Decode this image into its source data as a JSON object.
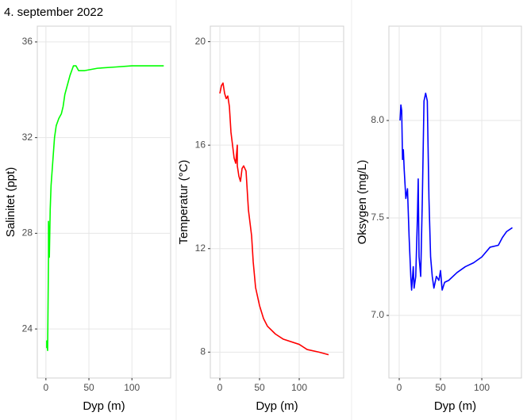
{
  "chart_data": [
    {
      "type": "line",
      "title": "4. september 2022",
      "xlabel": "Dyp (m)",
      "ylabel": "Salinitet (ppt)",
      "x": [
        1,
        1,
        2,
        3,
        3,
        4,
        5,
        6,
        8,
        10,
        12,
        15,
        18,
        20,
        22,
        25,
        28,
        32,
        35,
        38,
        45,
        60,
        80,
        100,
        120,
        137
      ],
      "values": [
        23.2,
        23.5,
        23.1,
        27,
        28.5,
        27,
        29,
        30,
        31,
        32,
        32.5,
        32.8,
        33,
        33.3,
        33.8,
        34.2,
        34.6,
        35,
        35,
        34.8,
        34.8,
        34.9,
        34.95,
        35,
        35,
        35
      ],
      "color": "#00ff00",
      "xlim": [
        -10,
        145
      ],
      "ylim": [
        21.95,
        36.66
      ],
      "xticks": [
        0,
        50,
        100
      ],
      "yticks": [
        24,
        28,
        32,
        36
      ],
      "grid": true
    },
    {
      "type": "line",
      "xlabel": "Dyp (m)",
      "ylabel": "Temperatur (°C)",
      "x": [
        0,
        2,
        4,
        6,
        8,
        10,
        12,
        14,
        16,
        18,
        20,
        22,
        22,
        24,
        26,
        28,
        30,
        33,
        36,
        40,
        42,
        45,
        50,
        55,
        60,
        70,
        80,
        100,
        110,
        125,
        137
      ],
      "values": [
        18,
        18.3,
        18.4,
        18,
        17.8,
        17.9,
        17.5,
        16.5,
        16,
        15.5,
        15.3,
        16,
        15.2,
        14.8,
        14.6,
        15.1,
        15.2,
        15,
        13.5,
        12.5,
        11.5,
        10.5,
        9.8,
        9.3,
        9,
        8.7,
        8.5,
        8.3,
        8.1,
        8,
        7.9
      ],
      "color": "#ff0000",
      "xlim": [
        -12,
        156
      ],
      "ylim": [
        7,
        20.6
      ],
      "xticks": [
        0,
        50,
        100
      ],
      "yticks": [
        8,
        12,
        16,
        20
      ],
      "grid": true
    },
    {
      "type": "line",
      "xlabel": "Dyp (m)",
      "ylabel": "Oksygen (mg/L)",
      "x": [
        1,
        2,
        3,
        4,
        5,
        6,
        8,
        10,
        12,
        14,
        15,
        17,
        18,
        20,
        22,
        23,
        24,
        26,
        28,
        30,
        32,
        34,
        36,
        38,
        40,
        42,
        45,
        48,
        50,
        52,
        55,
        60,
        70,
        80,
        90,
        100,
        110,
        120,
        125,
        130,
        137
      ],
      "values": [
        8.0,
        8.08,
        8.05,
        7.8,
        7.85,
        7.75,
        7.6,
        7.65,
        7.4,
        7.2,
        7.13,
        7.25,
        7.14,
        7.2,
        7.5,
        7.7,
        7.3,
        7.2,
        7.6,
        8.1,
        8.14,
        8.1,
        7.6,
        7.3,
        7.2,
        7.14,
        7.2,
        7.18,
        7.23,
        7.13,
        7.17,
        7.18,
        7.22,
        7.25,
        7.27,
        7.3,
        7.35,
        7.36,
        7.4,
        7.43,
        7.45
      ],
      "color": "#0000ff",
      "xlim": [
        -12.5,
        148
      ],
      "ylim": [
        6.679,
        8.484
      ],
      "xticks": [
        0,
        50,
        100
      ],
      "yticks": [
        {
          "value": 7,
          "label": "7.0"
        },
        {
          "value": 7.5,
          "label": "7.5"
        },
        {
          "value": 8,
          "label": "8.0"
        }
      ],
      "grid": true
    }
  ]
}
